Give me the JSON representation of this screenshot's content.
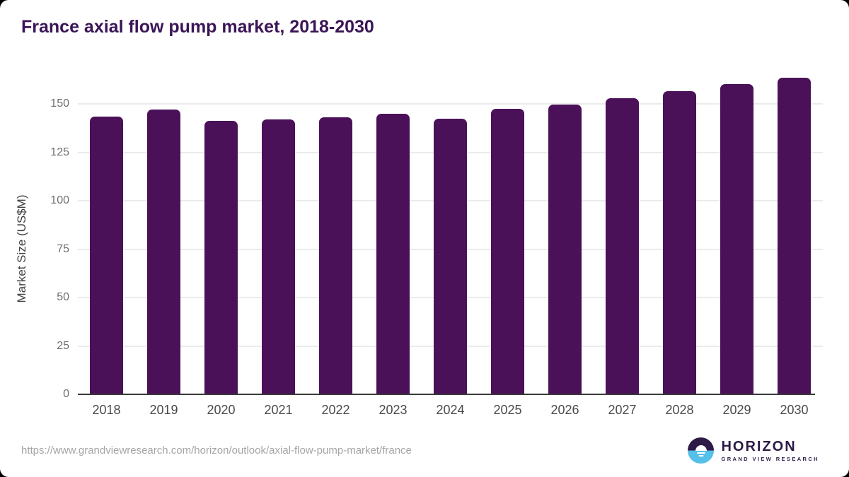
{
  "title": "France axial flow pump market, 2018-2030",
  "source_url": "https://www.grandviewresearch.com/horizon/outlook/axial-flow-pump-market/france",
  "logo": {
    "name": "HORIZON",
    "subtitle": "GRAND VIEW RESEARCH"
  },
  "colors": {
    "bar": "#4a1159",
    "title_text": "#3b1556",
    "axis_line": "#3a3a3a",
    "gridline": "#ebebeb",
    "ytick_label": "#6e6e6e",
    "xtick_label": "#4a4a4a",
    "url_text": "#a5a5a5",
    "logo_dark": "#2d1a47",
    "logo_blue": "#55c0e9"
  },
  "chart_data": {
    "type": "bar",
    "title": "France axial flow pump market, 2018-2030",
    "categories": [
      "2018",
      "2019",
      "2020",
      "2021",
      "2022",
      "2023",
      "2024",
      "2025",
      "2026",
      "2027",
      "2028",
      "2029",
      "2030"
    ],
    "values": [
      143.6,
      147.3,
      141.2,
      142.1,
      143.3,
      144.9,
      142.3,
      147.4,
      149.7,
      152.9,
      156.6,
      160.4,
      163.8
    ],
    "xlabel": "",
    "ylabel": "Market Size (US$M)",
    "yticks": [
      0,
      25,
      50,
      75,
      100,
      125,
      150
    ],
    "ylim": [
      0,
      168
    ],
    "grid": true,
    "legend": null,
    "bar_color": "#4a1159"
  }
}
